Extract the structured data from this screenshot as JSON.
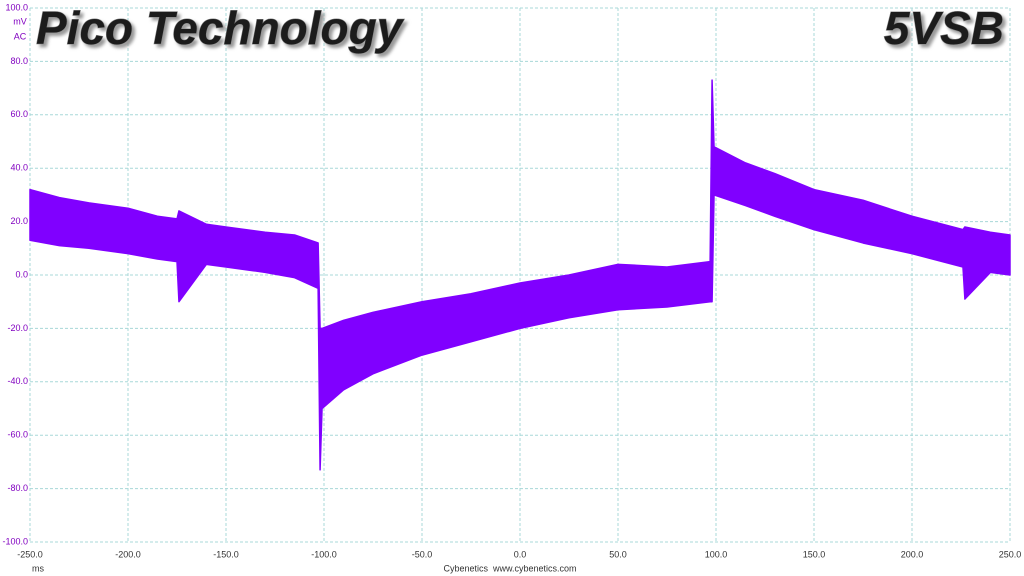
{
  "chart_data": {
    "type": "band",
    "title": "Pico Technology",
    "subtitle": "5VSB",
    "y_label": "mV",
    "y_coupling": "AC",
    "x_label": "ms",
    "footer": "Cybenetics  www.cybenetics.com",
    "color": "#8000ff",
    "grid": true,
    "xlim": [
      -250,
      250
    ],
    "ylim": [
      -100,
      100
    ],
    "xticks": [
      {
        "value": -250,
        "label": "-250.0"
      },
      {
        "value": -200,
        "label": "-200.0"
      },
      {
        "value": -150,
        "label": "-150.0"
      },
      {
        "value": -100,
        "label": "-100.0"
      },
      {
        "value": -50,
        "label": "-50.0"
      },
      {
        "value": 0,
        "label": "0.0"
      },
      {
        "value": 50,
        "label": "50.0"
      },
      {
        "value": 100,
        "label": "100.0"
      },
      {
        "value": 150,
        "label": "150.0"
      },
      {
        "value": 200,
        "label": "200.0"
      },
      {
        "value": 250,
        "label": "250.0"
      }
    ],
    "yticks": [
      {
        "value": 100,
        "label": "100.0"
      },
      {
        "value": 80,
        "label": "80.0"
      },
      {
        "value": 60,
        "label": "60.0"
      },
      {
        "value": 40,
        "label": "40.0"
      },
      {
        "value": 20,
        "label": "20.0"
      },
      {
        "value": 0,
        "label": "0.0"
      },
      {
        "value": -20,
        "label": "-20.0"
      },
      {
        "value": -40,
        "label": "-40.0"
      },
      {
        "value": -60,
        "label": "-60.0"
      },
      {
        "value": -80,
        "label": "-80.0"
      },
      {
        "value": -100,
        "label": "-100.0"
      }
    ],
    "x": [
      -250,
      -235,
      -220,
      -200,
      -185,
      -175,
      -174,
      -160,
      -150,
      -130,
      -115,
      -103,
      -102,
      -101,
      -90,
      -75,
      -50,
      -25,
      0,
      25,
      50,
      75,
      97,
      98,
      99,
      115,
      130,
      150,
      175,
      200,
      226,
      227,
      240,
      250
    ],
    "high": [
      32,
      29,
      27,
      25,
      22,
      21,
      24,
      19,
      18,
      16,
      15,
      12,
      -20,
      -20,
      -17,
      -14,
      -10,
      -7,
      -3,
      0,
      4,
      3,
      5,
      73,
      48,
      42,
      38,
      32,
      28,
      22,
      17,
      18,
      16,
      15
    ],
    "low": [
      13,
      11,
      10,
      8,
      6,
      5,
      -10,
      4,
      3,
      1,
      -1,
      -5,
      -73,
      -50,
      -43,
      -37,
      -30,
      -25,
      -20,
      -16,
      -13,
      -12,
      -10,
      -10,
      30,
      26,
      22,
      17,
      12,
      8,
      3,
      -9,
      1,
      0
    ]
  }
}
